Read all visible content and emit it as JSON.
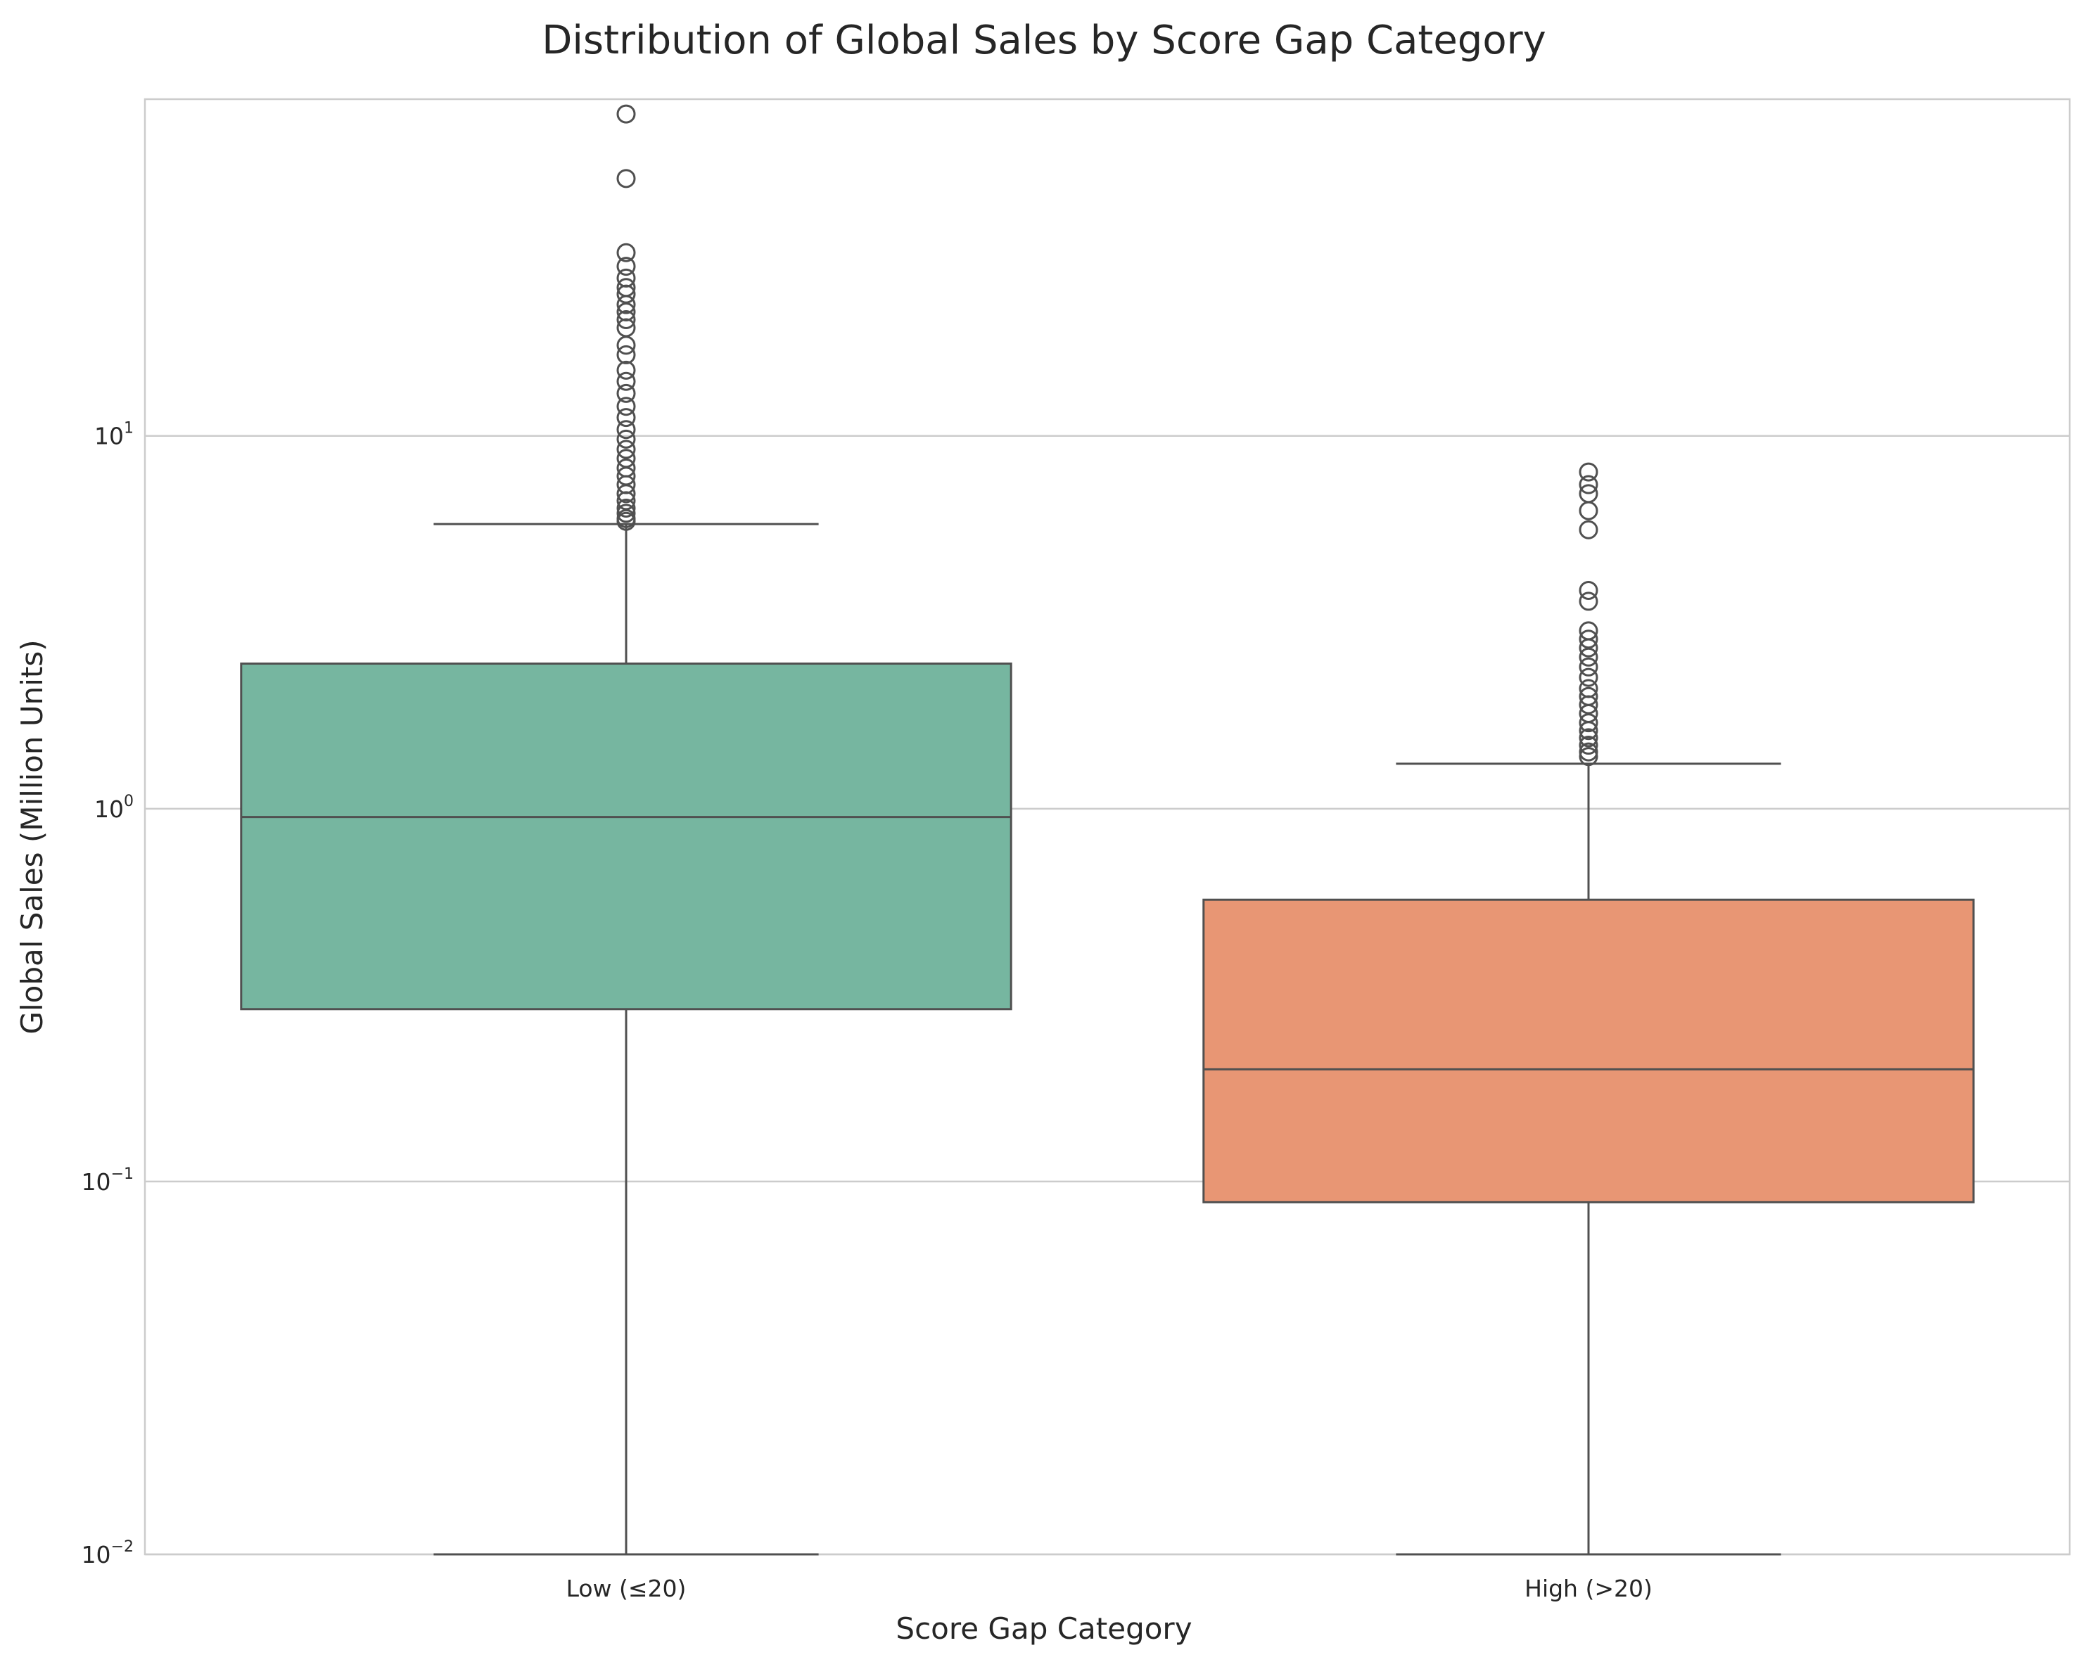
{
  "chart_data": {
    "type": "box",
    "title": "Distribution of Global Sales by Score Gap Category",
    "xlabel": "Score Gap Category",
    "ylabel": "Global Sales (Million Units)",
    "yscale": "log",
    "ylim": [
      0.01,
      80
    ],
    "grid": true,
    "y_ticks": [
      {
        "value": 0.01,
        "base": "10",
        "exp": "−2"
      },
      {
        "value": 0.1,
        "base": "10",
        "exp": "−1"
      },
      {
        "value": 1,
        "base": "10",
        "exp": "0"
      },
      {
        "value": 10,
        "base": "10",
        "exp": "1"
      }
    ],
    "categories": [
      "Low (≤20)",
      "High (>20)"
    ],
    "boxes": [
      {
        "category": "Low (≤20)",
        "color": "#76b6a0",
        "whisker_low": 0.01,
        "q1": 0.29,
        "median": 0.95,
        "q3": 2.45,
        "whisker_high": 5.8,
        "outliers": [
          73.0,
          49.0,
          31.0,
          28.5,
          26.5,
          25.0,
          24.0,
          22.5,
          21.5,
          20.5,
          19.5,
          17.5,
          16.5,
          15.0,
          14.0,
          13.0,
          12.0,
          11.2,
          10.4,
          9.8,
          9.2,
          8.7,
          8.2,
          7.8,
          7.4,
          7.0,
          6.7,
          6.4,
          6.2,
          6.0,
          5.9
        ]
      },
      {
        "category": "High (>20)",
        "color": "#e89674",
        "whisker_low": 0.01,
        "q1": 0.088,
        "median": 0.2,
        "q3": 0.57,
        "whisker_high": 1.32,
        "outliers": [
          8.0,
          7.4,
          7.0,
          6.3,
          5.6,
          3.85,
          3.6,
          3.0,
          2.85,
          2.7,
          2.55,
          2.4,
          2.25,
          2.1,
          2.0,
          1.9,
          1.8,
          1.7,
          1.62,
          1.55,
          1.48,
          1.42,
          1.38
        ]
      }
    ],
    "colors": {
      "line": "#505050",
      "grid": "#cccccc",
      "spine": "#cccccc",
      "text": "#262626"
    }
  }
}
